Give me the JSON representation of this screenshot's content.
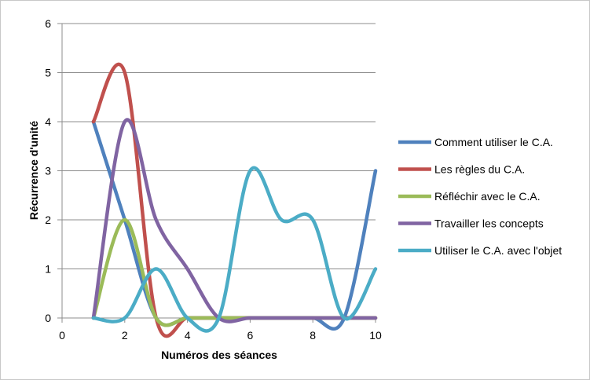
{
  "chart_data": {
    "type": "line",
    "smooth": true,
    "xlabel": "Numéros des séances",
    "ylabel": "Récurrence d'unité",
    "xlim": [
      0,
      10
    ],
    "ylim": [
      0,
      6
    ],
    "xticks": [
      "0",
      "2",
      "4",
      "6",
      "8",
      "10"
    ],
    "yticks": [
      "0",
      "1",
      "2",
      "3",
      "4",
      "5",
      "6"
    ],
    "grid": "horizontal",
    "legend": "right",
    "x": [
      1,
      2,
      3,
      4,
      5,
      6,
      7,
      8,
      9,
      10
    ],
    "series": [
      {
        "name": "Comment utiliser le C.A.",
        "color": "#4f81bd",
        "values": [
          4,
          2,
          0,
          0,
          0,
          0,
          0,
          0,
          0,
          3
        ]
      },
      {
        "name": "Les règles du C.A.",
        "color": "#c0504d",
        "values": [
          4,
          5,
          0,
          0,
          0,
          0,
          0,
          0,
          0,
          0
        ]
      },
      {
        "name": "Réfléchir avec le C.A.",
        "color": "#9bbb59",
        "values": [
          0,
          2,
          0,
          0,
          0,
          0,
          0,
          0,
          0,
          0
        ]
      },
      {
        "name": "Travailler les concepts",
        "color": "#8064a2",
        "values": [
          0,
          4,
          2,
          1,
          0,
          0,
          0,
          0,
          0,
          0
        ]
      },
      {
        "name": "Utiliser le C.A. avec l'objet",
        "color": "#4bacc6",
        "values": [
          0,
          0,
          1,
          0,
          0,
          3,
          2,
          2,
          0,
          1
        ]
      }
    ]
  }
}
